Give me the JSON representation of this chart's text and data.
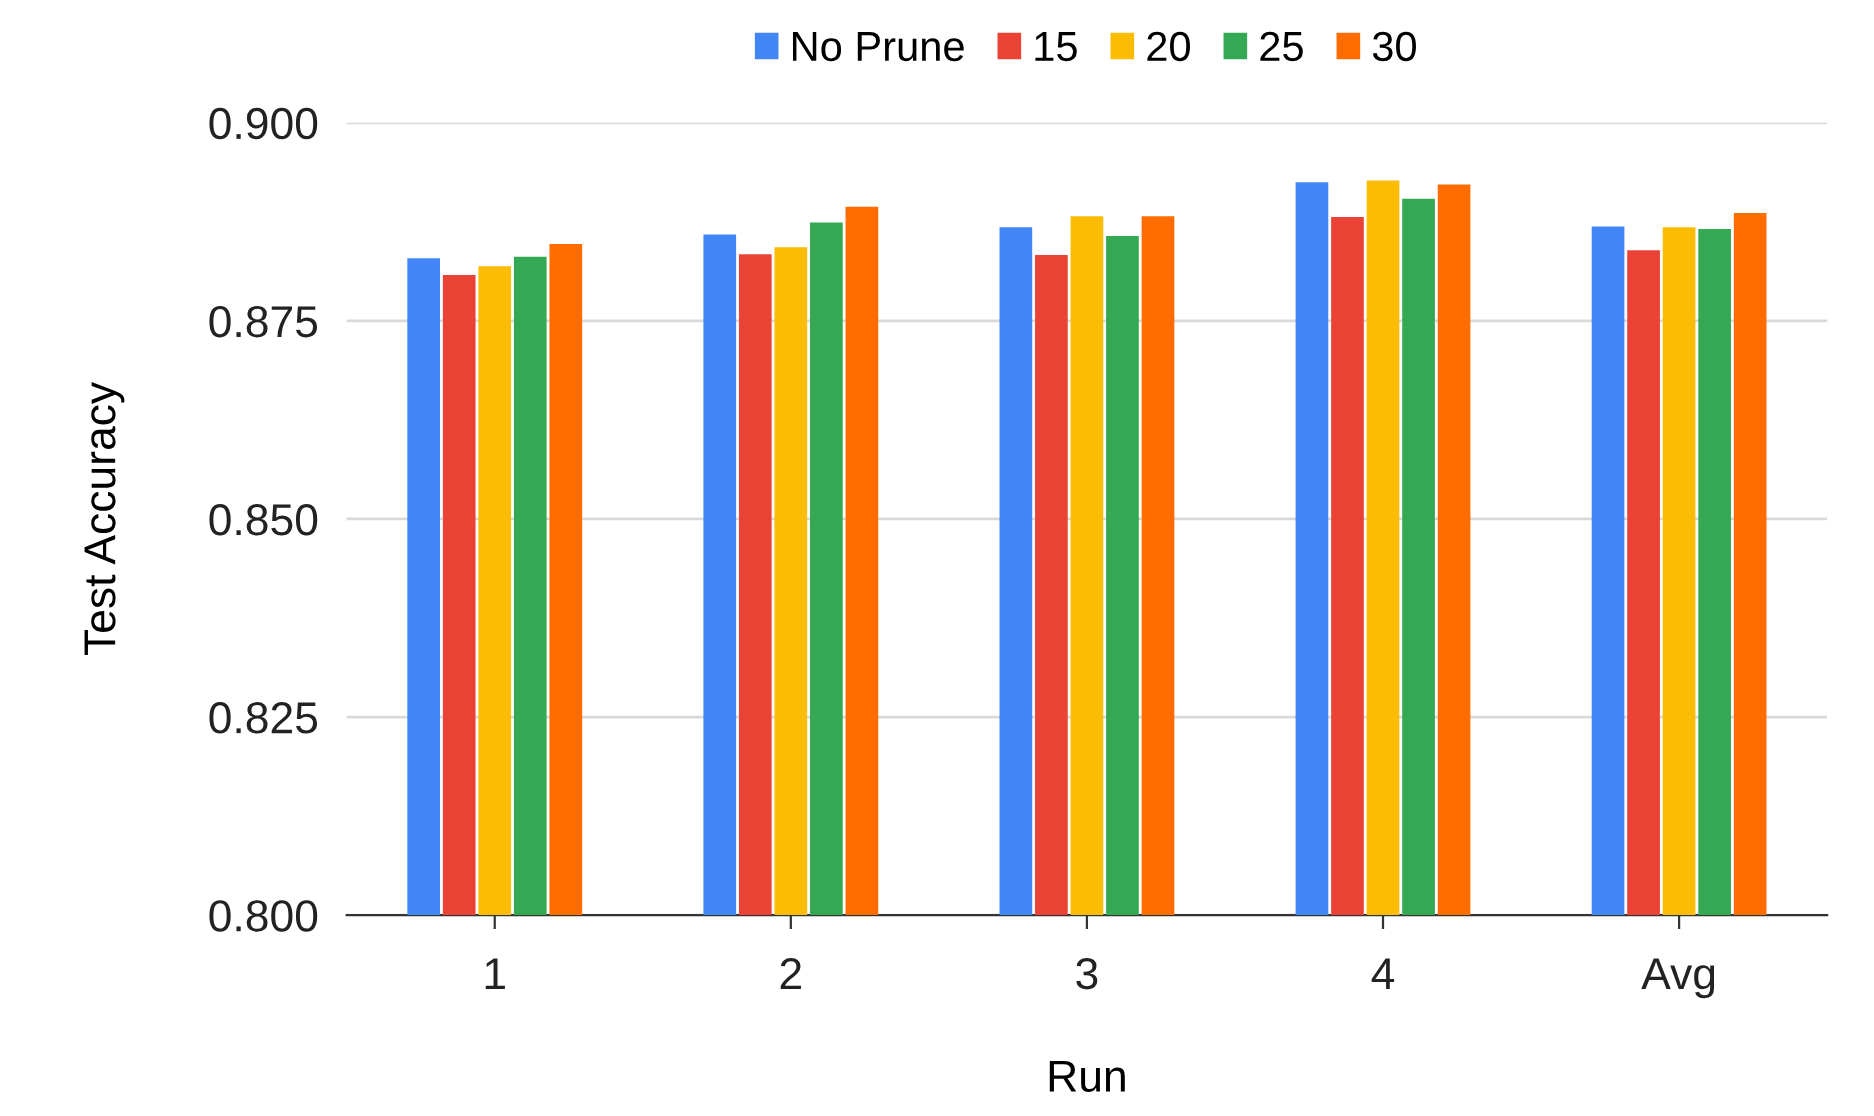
{
  "chart_data": {
    "type": "bar",
    "xlabel": "Run",
    "ylabel": "Test Accuracy",
    "categories": [
      "1",
      "2",
      "3",
      "4",
      "Avg"
    ],
    "series": [
      {
        "name": "No Prune",
        "color": "#4285f4",
        "values": [
          0.8829,
          0.8859,
          0.8868,
          0.8925,
          0.8869
        ]
      },
      {
        "name": "15",
        "color": "#ea4335",
        "values": [
          0.8808,
          0.8834,
          0.8833,
          0.8881,
          0.8839
        ]
      },
      {
        "name": "20",
        "color": "#fbbc04",
        "values": [
          0.8819,
          0.8843,
          0.8882,
          0.8927,
          0.8868
        ]
      },
      {
        "name": "25",
        "color": "#34a853",
        "values": [
          0.8831,
          0.8874,
          0.8857,
          0.8904,
          0.8866
        ]
      },
      {
        "name": "30",
        "color": "#ff6d01",
        "values": [
          0.8847,
          0.8894,
          0.8882,
          0.8922,
          0.8886
        ]
      }
    ],
    "ylim": [
      0.8,
      0.9
    ],
    "yticks": [
      {
        "value": 0.8,
        "label": "0.800"
      },
      {
        "value": 0.825,
        "label": "0.825"
      },
      {
        "value": 0.85,
        "label": "0.850"
      },
      {
        "value": 0.875,
        "label": "0.875"
      },
      {
        "value": 0.9,
        "label": "0.900"
      }
    ],
    "grid": "y",
    "legend": "top"
  }
}
